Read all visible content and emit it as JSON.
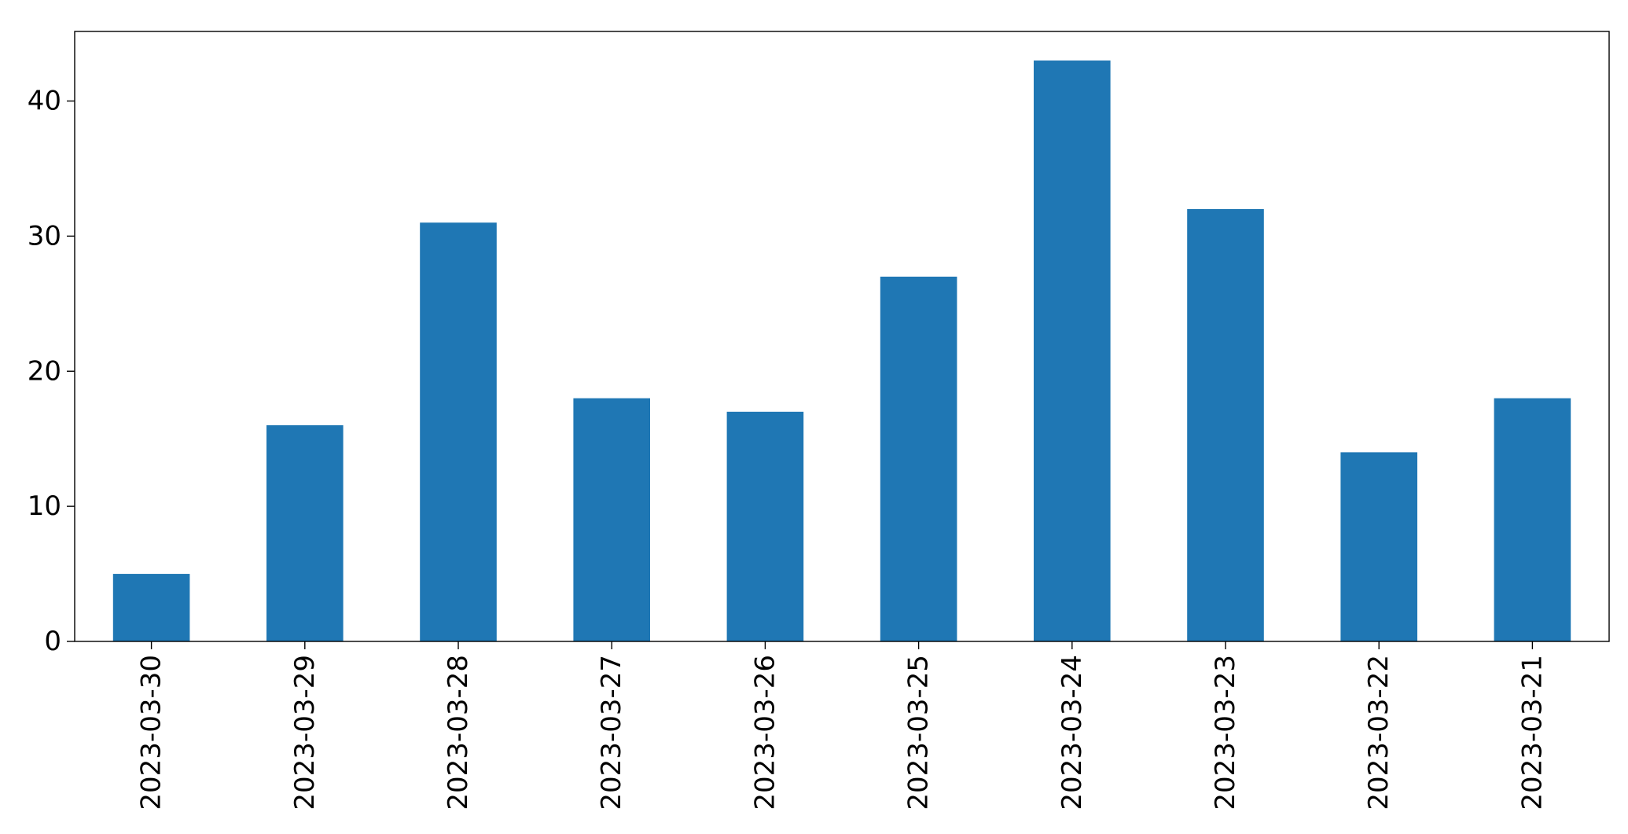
{
  "chart_data": {
    "type": "bar",
    "categories": [
      "2023-03-30",
      "2023-03-29",
      "2023-03-28",
      "2023-03-27",
      "2023-03-26",
      "2023-03-25",
      "2023-03-24",
      "2023-03-23",
      "2023-03-22",
      "2023-03-21"
    ],
    "values": [
      5,
      16,
      31,
      18,
      17,
      27,
      43,
      32,
      14,
      18
    ],
    "title": "",
    "xlabel": "",
    "ylabel": "",
    "ylim": [
      0,
      45.15
    ],
    "yticks": [
      0,
      10,
      20,
      30,
      40
    ],
    "x_tick_rotation": "vertical",
    "grid": false,
    "legend": "none",
    "bar_color": "#1f77b4"
  }
}
